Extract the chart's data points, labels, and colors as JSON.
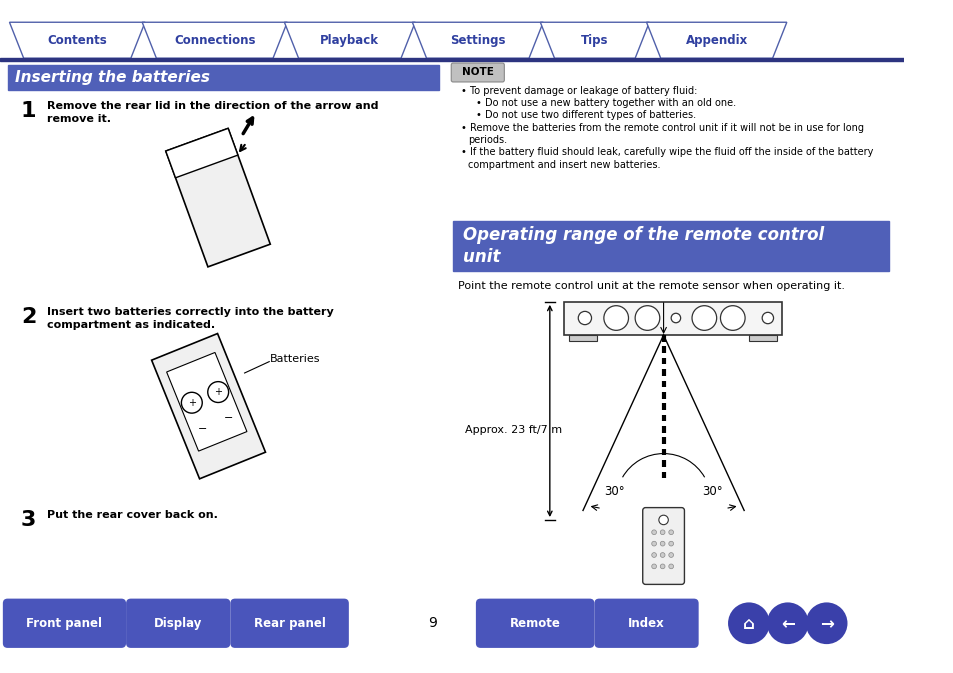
{
  "page_bg": "#ffffff",
  "top_border_color": "#2d3480",
  "tab_border_color": "#5060aa",
  "tab_text_color": "#3040a0",
  "tab_bg": "#ffffff",
  "tab_labels": [
    "Contents",
    "Connections",
    "Playback",
    "Settings",
    "Tips",
    "Appendix"
  ],
  "header_blue": "#5060b8",
  "header_text_color": "#ffffff",
  "section1_title": "Inserting the batteries",
  "section2_title_line1": "Operating range of the remote control",
  "section2_title_line2": "unit",
  "note_bg": "#d8d8d8",
  "note_border_color": "#999999",
  "step1_num": "1",
  "step1_text_line1": "Remove the rear lid in the direction of the arrow and",
  "step1_text_line2": "remove it.",
  "step2_num": "2",
  "step2_text_line1": "Insert two batteries correctly into the battery",
  "step2_text_line2": "compartment as indicated.",
  "batteries_label": "Batteries",
  "step3_num": "3",
  "step3_text": "Put the rear cover back on.",
  "note_title": "NOTE",
  "note_bullet1": "To prevent damage or leakage of battery fluid:",
  "note_sub1": "Do not use a new battery together with an old one.",
  "note_sub2": "Do not use two different types of batteries.",
  "note_bullet2": "Remove the batteries from the remote control unit if it will not be in use for long periods.",
  "note_bullet3": "If the battery fluid should leak, carefully wipe the fluid off the inside of the battery compartment and insert new batteries.",
  "range_text": "Point the remote control unit at the remote sensor when operating it.",
  "approx_text": "Approx. 23 ft/7 m",
  "angle_left": "30°",
  "angle_right": "30°",
  "bottom_btn_color": "#4a55bb",
  "bottom_btn_text_color": "#ffffff",
  "bottom_btn_labels": [
    "Front panel",
    "Display",
    "Rear panel",
    "Remote",
    "Index"
  ],
  "page_num": "9",
  "icon_color": "#3a40aa"
}
